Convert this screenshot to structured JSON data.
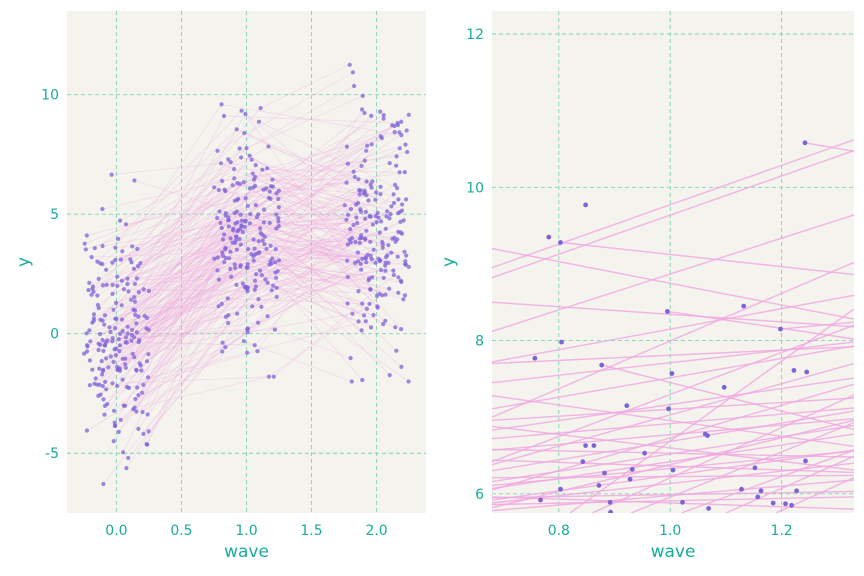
{
  "colors": {
    "panel_bg": "#f4f3ed",
    "grid": "#7fd6b0",
    "line": "#f0a8e0",
    "point": "#7d63d8",
    "text": "#1aab9b"
  },
  "chart_data": [
    {
      "type": "scatter",
      "subtype": "spaghetti-scatter",
      "xlabel": "wave",
      "ylabel": "y",
      "xlim": [
        -0.38,
        2.38
      ],
      "ylim": [
        -7.5,
        13.5
      ],
      "xticks": [
        0.0,
        0.5,
        1.0,
        1.5,
        2.0
      ],
      "xtick_labels": [
        "0.0",
        "0.5",
        "1.0",
        "1.5",
        "2.0"
      ],
      "yticks": [
        -5,
        0,
        5,
        10
      ],
      "ytick_labels": [
        "-5",
        "0",
        "5",
        "10"
      ],
      "grid": true,
      "n_subjects": 200,
      "wave_centers": [
        0,
        1,
        2
      ],
      "jitter_halfwidth": 0.25,
      "series": [
        {
          "wave": 0,
          "mean_y": 0.0,
          "sd_y": 2.3,
          "min_y": -6.7,
          "max_y": 7.1
        },
        {
          "wave": 1,
          "mean_y": 3.9,
          "sd_y": 2.4,
          "min_y": -1.8,
          "max_y": 10.6
        },
        {
          "wave": 2,
          "mean_y": 4.4,
          "sd_y": 2.6,
          "min_y": -2.0,
          "max_y": 12.5
        }
      ]
    },
    {
      "type": "scatter",
      "subtype": "spaghetti-scatter-zoom",
      "xlabel": "wave",
      "ylabel": "y",
      "xlim": [
        0.68,
        1.33
      ],
      "ylim": [
        5.75,
        12.3
      ],
      "xticks": [
        0.8,
        1.0,
        1.2
      ],
      "xtick_labels": [
        "0.8",
        "1.0",
        "1.2"
      ],
      "yticks": [
        6,
        8,
        10,
        12
      ],
      "ytick_labels": [
        "6",
        "8",
        "10",
        "12"
      ],
      "grid": true,
      "points": [
        [
          1.242,
          10.58
        ],
        [
          0.848,
          9.77
        ],
        [
          0.782,
          9.35
        ],
        [
          0.803,
          9.28
        ],
        [
          1.132,
          8.45
        ],
        [
          0.995,
          8.38
        ],
        [
          1.198,
          8.15
        ],
        [
          0.805,
          7.98
        ],
        [
          0.757,
          7.77
        ],
        [
          0.877,
          7.68
        ],
        [
          1.003,
          7.57
        ],
        [
          1.222,
          7.61
        ],
        [
          1.245,
          7.59
        ],
        [
          1.097,
          7.39
        ],
        [
          0.922,
          7.15
        ],
        [
          0.997,
          7.11
        ],
        [
          1.063,
          6.78
        ],
        [
          1.067,
          6.76
        ],
        [
          0.848,
          6.63
        ],
        [
          0.863,
          6.63
        ],
        [
          0.954,
          6.53
        ],
        [
          0.843,
          6.42
        ],
        [
          1.243,
          6.43
        ],
        [
          0.932,
          6.32
        ],
        [
          1.005,
          6.31
        ],
        [
          1.152,
          6.34
        ],
        [
          0.882,
          6.27
        ],
        [
          0.928,
          6.19
        ],
        [
          0.872,
          6.11
        ],
        [
          0.803,
          6.06
        ],
        [
          1.128,
          6.06
        ],
        [
          1.163,
          6.04
        ],
        [
          1.227,
          6.04
        ],
        [
          1.157,
          5.96
        ],
        [
          0.767,
          5.92
        ],
        [
          0.892,
          5.89
        ],
        [
          1.022,
          5.89
        ],
        [
          1.185,
          5.88
        ],
        [
          1.207,
          5.87
        ],
        [
          1.218,
          5.85
        ],
        [
          1.069,
          5.81
        ],
        [
          0.893,
          5.76
        ]
      ],
      "segments": [
        [
          [
            0.68,
            8.82
          ],
          [
            1.33,
            10.48
          ]
        ],
        [
          [
            0.68,
            8.5
          ],
          [
            1.33,
            8.18
          ]
        ],
        [
          [
            0.68,
            9.2
          ],
          [
            1.33,
            8.28
          ]
        ],
        [
          [
            0.805,
            9.28
          ],
          [
            1.33,
            8.86
          ]
        ],
        [
          [
            0.68,
            7.0
          ],
          [
            1.33,
            9.02
          ]
        ],
        [
          [
            0.68,
            6.42
          ],
          [
            1.33,
            8.2
          ]
        ],
        [
          [
            1.242,
            10.58
          ],
          [
            1.33,
            10.47
          ]
        ],
        [
          [
            0.68,
            8.95
          ],
          [
            1.33,
            10.62
          ]
        ],
        [
          [
            0.878,
            7.68
          ],
          [
            1.33,
            6.84
          ]
        ],
        [
          [
            0.68,
            6.38
          ],
          [
            1.33,
            7.7
          ]
        ],
        [
          [
            0.68,
            5.92
          ],
          [
            1.33,
            6.57
          ]
        ],
        [
          [
            0.68,
            6.83
          ],
          [
            1.33,
            7.51
          ]
        ],
        [
          [
            0.68,
            6.07
          ],
          [
            1.33,
            6.78
          ]
        ],
        [
          [
            0.68,
            7.7
          ],
          [
            1.33,
            7.92
          ]
        ],
        [
          [
            0.68,
            7.11
          ],
          [
            1.33,
            7.93
          ]
        ],
        [
          [
            0.68,
            5.78
          ],
          [
            1.33,
            6.18
          ]
        ],
        [
          [
            0.68,
            6.21
          ],
          [
            1.33,
            6.24
          ]
        ],
        [
          [
            0.68,
            6.57
          ],
          [
            1.33,
            6.98
          ]
        ],
        [
          [
            0.68,
            5.88
          ],
          [
            1.33,
            6.4
          ]
        ],
        [
          [
            0.68,
            6.11
          ],
          [
            1.33,
            6.56
          ]
        ],
        [
          [
            0.68,
            6.96
          ],
          [
            1.33,
            7.25
          ]
        ],
        [
          [
            0.68,
            5.82
          ],
          [
            1.33,
            6.96
          ]
        ],
        [
          [
            0.68,
            6.58
          ],
          [
            1.33,
            6.48
          ]
        ],
        [
          [
            0.68,
            6.3
          ],
          [
            1.33,
            7.08
          ]
        ],
        [
          [
            0.68,
            6.05
          ],
          [
            1.33,
            7.43
          ]
        ],
        [
          [
            0.68,
            5.95
          ],
          [
            1.33,
            6.03
          ]
        ],
        [
          [
            0.68,
            7.72
          ],
          [
            1.33,
            8.59
          ]
        ],
        [
          [
            0.68,
            6.16
          ],
          [
            1.33,
            6.89
          ]
        ],
        [
          [
            0.82,
            5.75
          ],
          [
            1.33,
            8.41
          ]
        ],
        [
          [
            0.86,
            5.75
          ],
          [
            1.33,
            7.29
          ]
        ],
        [
          [
            0.93,
            5.75
          ],
          [
            1.33,
            6.93
          ]
        ],
        [
          [
            1.02,
            5.75
          ],
          [
            1.33,
            6.57
          ]
        ],
        [
          [
            1.1,
            5.75
          ],
          [
            1.33,
            6.49
          ]
        ],
        [
          [
            1.19,
            5.75
          ],
          [
            1.33,
            6.21
          ]
        ],
        [
          [
            0.68,
            5.86
          ],
          [
            1.33,
            5.96
          ]
        ],
        [
          [
            0.68,
            6.44
          ],
          [
            1.33,
            6.28
          ]
        ],
        [
          [
            0.68,
            8.12
          ],
          [
            1.33,
            9.64
          ]
        ],
        [
          [
            0.68,
            7.45
          ],
          [
            1.33,
            7.98
          ]
        ],
        [
          [
            0.68,
            6.72
          ],
          [
            1.33,
            7.12
          ]
        ],
        [
          [
            0.68,
            5.96
          ],
          [
            1.33,
            5.8
          ]
        ],
        [
          [
            0.995,
            8.38
          ],
          [
            1.33,
            8.02
          ]
        ],
        [
          [
            1.198,
            8.15
          ],
          [
            1.33,
            8.24
          ]
        ],
        [
          [
            0.68,
            6.88
          ],
          [
            1.33,
            6.31
          ]
        ],
        [
          [
            0.68,
            7.28
          ],
          [
            1.33,
            6.62
          ]
        ]
      ]
    }
  ]
}
